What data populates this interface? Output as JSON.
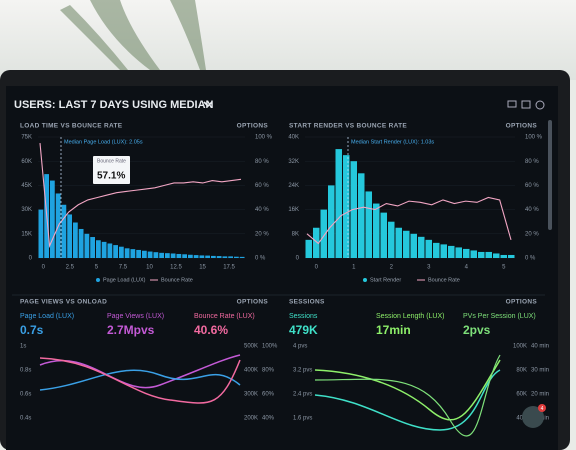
{
  "header": {
    "title": "USERS: LAST 7 DAYS USING MEDIAN"
  },
  "panels": [
    {
      "title": "LOAD TIME VS BOUNCE RATE",
      "options": "OPTIONS",
      "color": "#1fa3e0",
      "line_color": "#f2a6c4",
      "ylim": [
        0,
        75
      ],
      "yticks": [
        {
          "value": 75,
          "label": "75K"
        },
        {
          "value": 60,
          "label": "60K"
        },
        {
          "value": 45,
          "label": "45K"
        },
        {
          "value": 30,
          "label": "30K"
        },
        {
          "value": 15,
          "label": "15K"
        },
        {
          "value": 0,
          "label": "0"
        }
      ],
      "y2lim": [
        0,
        100
      ],
      "y2ticks": [
        {
          "value": 100,
          "label": "100 %"
        },
        {
          "value": 80,
          "label": "80 %"
        },
        {
          "value": 60,
          "label": "60 %"
        },
        {
          "value": 40,
          "label": "40 %"
        },
        {
          "value": 20,
          "label": "20 %"
        },
        {
          "value": 0,
          "label": "0 %"
        }
      ],
      "xlim": [
        -0.5,
        19
      ],
      "xticks": [
        0,
        2.5,
        5,
        7.5,
        10,
        12.5,
        15,
        17.5
      ],
      "annotation": "Median Page Load (LUX): 2.05s",
      "tooltip": {
        "label": "Bounce Rate",
        "value": "57.1%"
      },
      "legend": [
        "Page Load (LUX)",
        "Bounce Rate"
      ],
      "bars": [
        30,
        52,
        48,
        40,
        33,
        27,
        22,
        18,
        15,
        13,
        11,
        10,
        9,
        8,
        7,
        6,
        5.5,
        5,
        4.5,
        4,
        3.6,
        3.2,
        3,
        2.8,
        2.5,
        2.3,
        2,
        1.8,
        1.6,
        1.5,
        1.3,
        1.2,
        1,
        1,
        0.8,
        0.7
      ],
      "line": [
        95,
        10,
        28,
        38,
        44,
        48,
        50,
        52,
        54,
        55,
        56,
        57,
        58,
        60,
        62,
        62,
        63,
        62,
        64,
        63,
        64,
        65
      ]
    },
    {
      "title": "START RENDER VS BOUNCE RATE",
      "options": "OPTIONS",
      "color": "#25c8dc",
      "line_color": "#f2a6c4",
      "ylim": [
        0,
        40
      ],
      "yticks": [
        {
          "value": 40,
          "label": "40K"
        },
        {
          "value": 32,
          "label": "32K"
        },
        {
          "value": 24,
          "label": "24K"
        },
        {
          "value": 16,
          "label": "16K"
        },
        {
          "value": 8,
          "label": "8K"
        },
        {
          "value": 0,
          "label": "0"
        }
      ],
      "y2lim": [
        0,
        100
      ],
      "y2ticks": [
        {
          "value": 100,
          "label": "100 %"
        },
        {
          "value": 80,
          "label": "80 %"
        },
        {
          "value": 60,
          "label": "60 %"
        },
        {
          "value": 40,
          "label": "40 %"
        },
        {
          "value": 20,
          "label": "20 %"
        },
        {
          "value": 0,
          "label": "0 %"
        }
      ],
      "xlim": [
        -0.3,
        5.3
      ],
      "xticks": [
        0,
        1,
        2,
        3,
        4,
        5
      ],
      "annotation": "Median Start Render (LUX): 1.03s",
      "legend": [
        "Start Render",
        "Bounce Rate"
      ],
      "bars": [
        6,
        10,
        16,
        24,
        36,
        34,
        32,
        28,
        22,
        18,
        15,
        12,
        10,
        9,
        8,
        7,
        6,
        5,
        4.5,
        4,
        3.5,
        3,
        2.5,
        2,
        2,
        1.5,
        1,
        1
      ],
      "line": [
        20,
        12,
        25,
        35,
        40,
        42,
        40,
        45,
        43,
        47,
        46,
        44,
        48,
        45,
        47,
        46,
        50,
        48,
        15
      ]
    }
  ],
  "bottom": [
    {
      "title": "PAGE VIEWS VS ONLOAD",
      "options": "OPTIONS",
      "metrics": [
        {
          "label": "Page Load (LUX)",
          "value": "0.7s"
        },
        {
          "label": "Page Views (LUX)",
          "value": "2.7Mpvs"
        },
        {
          "label": "Bounce Rate (LUX)",
          "value": "40.6%"
        }
      ],
      "left_ticks": [
        "1s",
        "0.8s",
        "0.6s",
        "0.4s"
      ],
      "right_ticks": [
        "500K",
        "400K",
        "300K",
        "200K"
      ],
      "right2_ticks": [
        "100%",
        "80%",
        "60%",
        "40%"
      ]
    },
    {
      "title": "SESSIONS",
      "options": "OPTIONS",
      "metrics": [
        {
          "label": "Sessions",
          "value": "479K"
        },
        {
          "label": "Session Length (LUX)",
          "value": "17min"
        },
        {
          "label": "PVs Per Session (LUX)",
          "value": "2pvs"
        }
      ],
      "left_ticks": [
        "4 pvs",
        "3.2 pvs",
        "2.4 pvs",
        "1.6 pvs"
      ],
      "right_ticks": [
        "100K",
        "80K",
        "60K",
        "40K"
      ],
      "right2_ticks": [
        "40 min",
        "30 min",
        "20 min",
        "10 min"
      ]
    }
  ],
  "chat": {
    "badge": "4"
  }
}
